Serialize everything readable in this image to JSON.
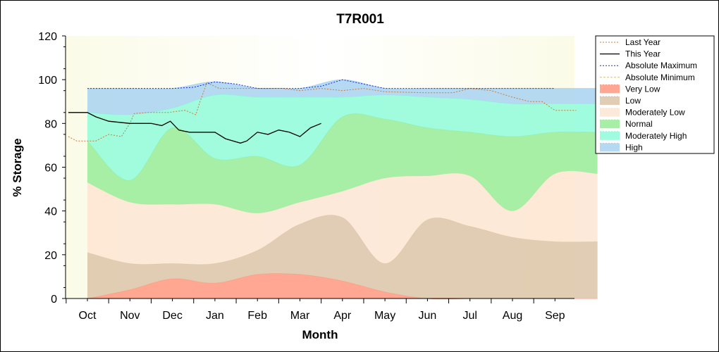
{
  "chart_data": {
    "type": "area",
    "title": "T7R001",
    "xlabel": "Month",
    "ylabel": "% Storage",
    "ylim": [
      0,
      120
    ],
    "yticks": [
      0,
      20,
      40,
      60,
      80,
      100,
      120
    ],
    "categories": [
      "Oct",
      "Nov",
      "Dec",
      "Jan",
      "Feb",
      "Mar",
      "Apr",
      "May",
      "Jun",
      "Jul",
      "Aug",
      "Sep"
    ],
    "legend_position": "right",
    "bands": [
      {
        "name": "Very Low",
        "color": "#ff9880",
        "lower": [
          0,
          0,
          0,
          0,
          0,
          0,
          0,
          0,
          0,
          0,
          0,
          0,
          0
        ],
        "upper": [
          0,
          4,
          9,
          7,
          11,
          11,
          8,
          3,
          0,
          0,
          0,
          0,
          0
        ]
      },
      {
        "name": "Low",
        "color": "#dcc4a8",
        "lower": [
          0,
          4,
          9,
          7,
          11,
          11,
          8,
          3,
          0,
          0,
          0,
          0,
          0
        ],
        "upper": [
          21,
          16,
          16,
          16,
          22,
          34,
          37,
          16,
          36,
          33,
          28,
          26,
          26
        ]
      },
      {
        "name": "Moderately Low",
        "color": "#fde5d2",
        "lower": [
          21,
          16,
          16,
          16,
          22,
          34,
          37,
          16,
          36,
          33,
          28,
          26,
          26
        ],
        "upper": [
          53,
          44,
          43,
          43,
          39,
          44,
          49,
          55,
          56,
          56,
          40,
          57,
          57
        ]
      },
      {
        "name": "Normal",
        "color": "#98ec98",
        "lower": [
          53,
          44,
          43,
          43,
          39,
          44,
          49,
          55,
          56,
          56,
          40,
          57,
          57
        ],
        "upper": [
          72,
          54,
          78,
          64,
          65,
          61,
          83,
          82,
          78,
          76,
          74,
          76,
          76
        ]
      },
      {
        "name": "Moderately High",
        "color": "#8ffcd8",
        "lower": [
          72,
          54,
          78,
          64,
          65,
          61,
          83,
          82,
          78,
          76,
          74,
          76,
          76
        ],
        "upper": [
          85,
          84,
          87,
          93,
          92,
          92,
          92,
          93,
          92,
          91,
          89,
          89,
          89
        ]
      },
      {
        "name": "High",
        "color": "#a8d2f0",
        "lower": [
          85,
          84,
          87,
          93,
          92,
          92,
          92,
          93,
          92,
          91,
          89,
          89,
          89
        ],
        "upper": [
          96,
          96,
          96,
          99,
          96,
          96,
          100,
          96,
          96,
          96,
          96,
          96,
          96
        ]
      }
    ],
    "series": [
      {
        "name": "Last Year",
        "color": "#cc7a3a",
        "x": [
          -0.45,
          -0.25,
          0,
          0.2,
          0.5,
          0.8,
          1.0,
          1.1,
          1.4,
          1.9,
          2.3,
          2.55,
          2.65,
          2.82,
          2.88,
          3.1,
          3.6,
          4.0,
          4.6,
          5.0,
          5.5,
          6.0,
          6.5,
          7.0,
          8.0,
          8.6,
          9.0,
          9.5,
          10.0,
          10.4,
          10.7,
          11.0,
          11.5
        ],
        "y": [
          74,
          72,
          72,
          72,
          75,
          74,
          80,
          84.5,
          85,
          85,
          86,
          84,
          90,
          99,
          98,
          96,
          96,
          96,
          96,
          95,
          96,
          95,
          96,
          94.5,
          94,
          94,
          96,
          95,
          92,
          90,
          90,
          86,
          86
        ]
      },
      {
        "name": "This Year",
        "color": "#000000",
        "x": [
          -0.45,
          0,
          0.2,
          0.5,
          1.0,
          1.5,
          1.75,
          1.95,
          2.15,
          2.4,
          3.0,
          3.25,
          3.6,
          3.75,
          4.0,
          4.25,
          4.5,
          4.75,
          5.0,
          5.25,
          5.5
        ],
        "y": [
          85,
          85,
          83,
          81,
          80,
          80,
          79,
          81,
          77,
          76,
          76,
          73,
          71,
          72,
          76,
          75,
          77,
          76,
          74,
          78,
          80
        ]
      },
      {
        "name": "Absolute Maximum",
        "color": "#1e2adc",
        "x": [
          0,
          1,
          2,
          2.5,
          3,
          3.5,
          4,
          5,
          5.5,
          6,
          6.5,
          7,
          8,
          9,
          10,
          11
        ],
        "y": [
          96,
          96,
          96,
          96.5,
          99,
          98,
          96,
          96,
          97,
          100,
          98,
          96,
          96,
          96,
          96,
          96
        ]
      },
      {
        "name": "Absolute Minimum",
        "color": "#e0d000",
        "x": [],
        "y": []
      }
    ]
  }
}
